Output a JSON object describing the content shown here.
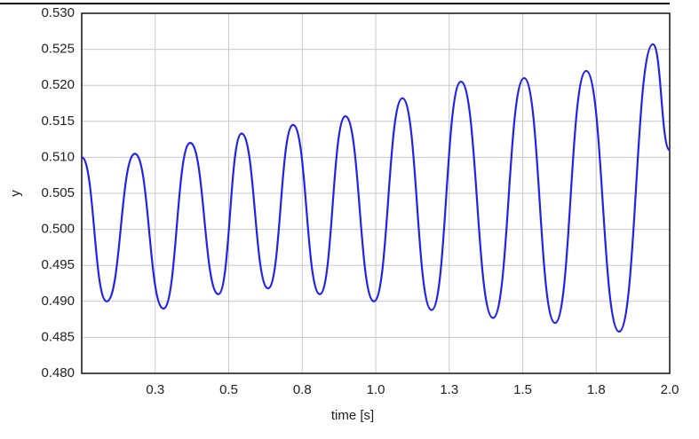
{
  "chart_data": {
    "type": "line",
    "x_label": "time [s]",
    "y_label": "y",
    "xlim": [
      0,
      2.0
    ],
    "ylim": [
      0.48,
      0.53
    ],
    "xticks": [
      {
        "value": 0.25,
        "label": "0.3"
      },
      {
        "value": 0.5,
        "label": "0.5"
      },
      {
        "value": 0.75,
        "label": "0.8"
      },
      {
        "value": 1.0,
        "label": "1.0"
      },
      {
        "value": 1.25,
        "label": "1.3"
      },
      {
        "value": 1.5,
        "label": "1.5"
      },
      {
        "value": 1.75,
        "label": "1.8"
      },
      {
        "value": 2.0,
        "label": "2.0"
      }
    ],
    "yticks": [
      {
        "value": 0.48,
        "label": "0.480"
      },
      {
        "value": 0.485,
        "label": "0.485"
      },
      {
        "value": 0.49,
        "label": "0.490"
      },
      {
        "value": 0.495,
        "label": "0.495"
      },
      {
        "value": 0.5,
        "label": "0.500"
      },
      {
        "value": 0.505,
        "label": "0.505"
      },
      {
        "value": 0.51,
        "label": "0.510"
      },
      {
        "value": 0.515,
        "label": "0.515"
      },
      {
        "value": 0.52,
        "label": "0.520"
      },
      {
        "value": 0.525,
        "label": "0.525"
      },
      {
        "value": 0.53,
        "label": "0.530"
      }
    ],
    "grid": true,
    "x": [
      0,
      0.085,
      0.181,
      0.278,
      0.369,
      0.465,
      0.544,
      0.634,
      0.719,
      0.81,
      0.897,
      0.994,
      1.091,
      1.19,
      1.29,
      1.399,
      1.505,
      1.61,
      1.716,
      1.828,
      1.943,
      2.0
    ],
    "series": [
      {
        "color": "#2222ee",
        "values": [
          0.51,
          0.49,
          0.5105,
          0.489,
          0.512,
          0.491,
          0.5133,
          0.4918,
          0.5145,
          0.491,
          0.5157,
          0.49,
          0.5182,
          0.4888,
          0.5205,
          0.4877,
          0.521,
          0.487,
          0.522,
          0.4858,
          0.5257,
          0.511
        ]
      }
    ]
  }
}
